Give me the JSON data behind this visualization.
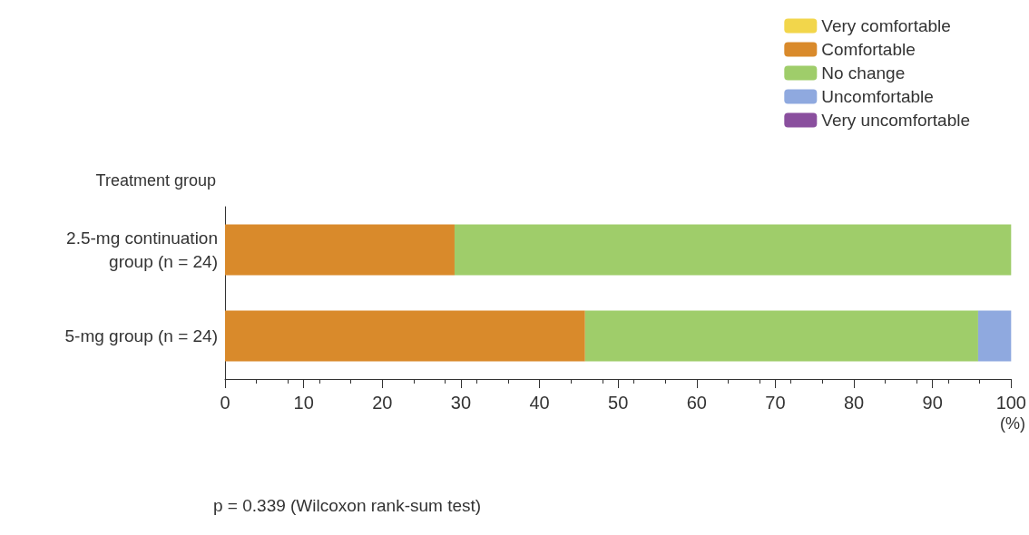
{
  "chart_data": {
    "type": "bar",
    "orientation": "horizontal",
    "stacked": true,
    "ylabel": "Treatment group",
    "xlabel": "(%)",
    "categories": [
      "2.5-mg continuation\ngroup (n = 24)",
      "5-mg group (n = 24)"
    ],
    "series": [
      {
        "name": "Very comfortable",
        "color": "#f2d64b",
        "values": [
          0,
          0
        ]
      },
      {
        "name": "Comfortable",
        "color": "#d98a2b",
        "values": [
          29.2,
          45.8
        ]
      },
      {
        "name": "No change",
        "color": "#9fcd6a",
        "values": [
          70.8,
          50
        ]
      },
      {
        "name": "Uncomfortable",
        "color": "#8fa9df",
        "values": [
          0,
          4.2
        ]
      },
      {
        "name": "Very uncomfortable",
        "color": "#8a4f9e",
        "values": [
          0,
          0
        ]
      }
    ],
    "xlim": [
      0,
      100
    ],
    "xticks": [
      0,
      10,
      20,
      30,
      40,
      50,
      60,
      70,
      80,
      90,
      100
    ],
    "grid": false,
    "legend": "top right",
    "annotations": [
      "p = 0.339 (Wilcoxon rank-sum test)"
    ]
  }
}
